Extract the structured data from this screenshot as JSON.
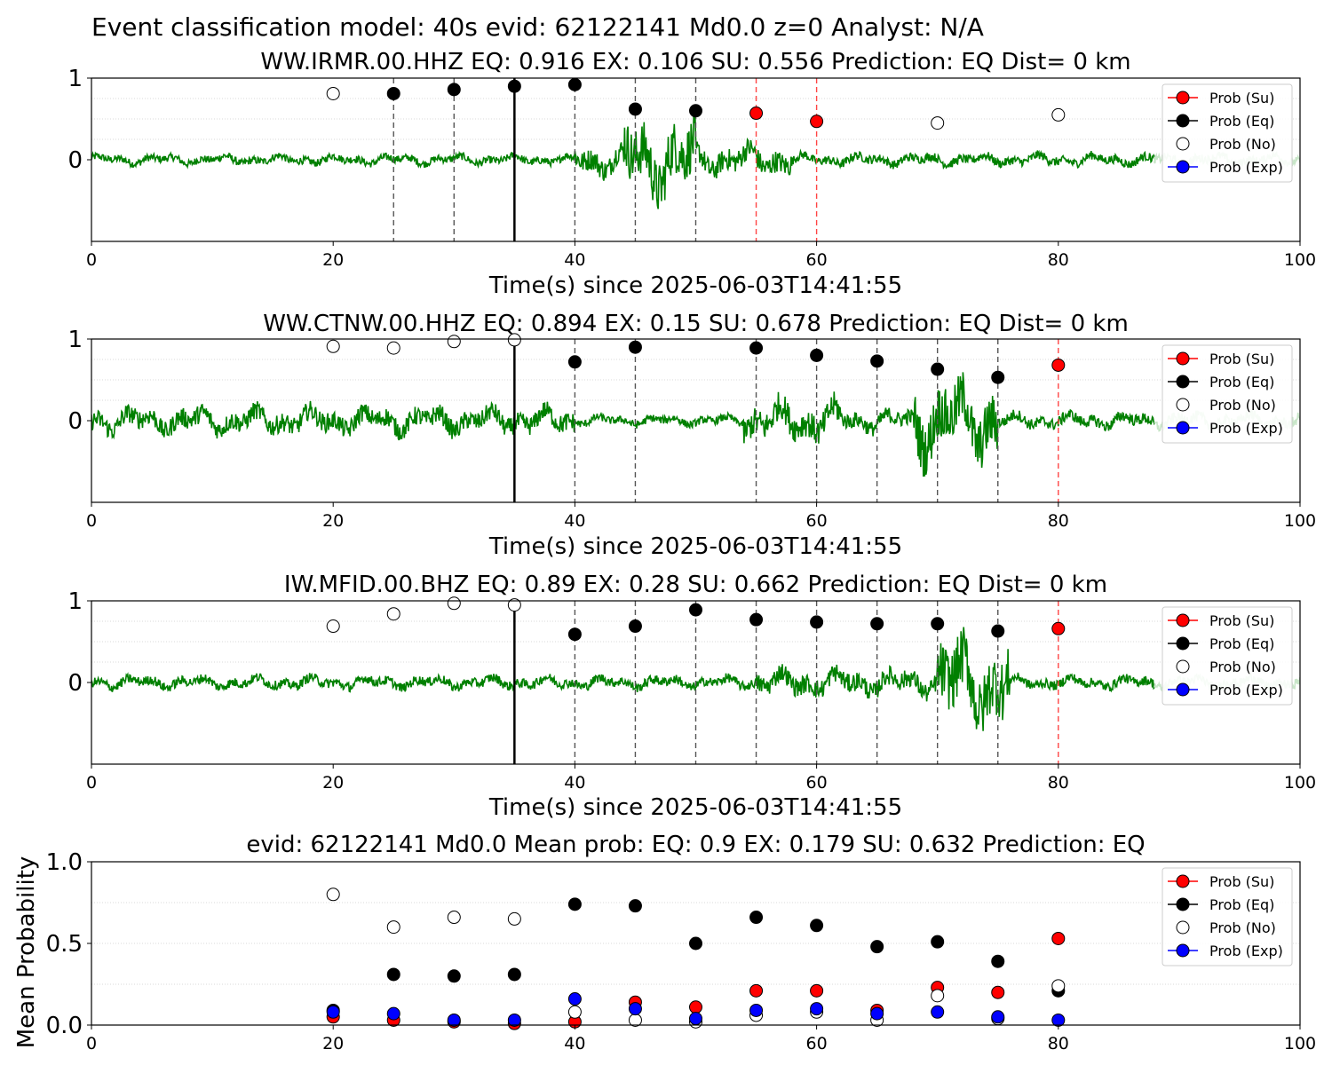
{
  "figure_title": "Event classification model: 40s evid: 62122141 Md0.0 z=0 Analyst: N/A",
  "legend_entries": [
    "Prob (Su)",
    "Prob (Eq)",
    "Prob (No)",
    "Prob (Exp)"
  ],
  "colors": {
    "su": "#ff0000",
    "eq": "#000000",
    "no": "#ffffff",
    "exp": "#0000ff",
    "waveform": "#008000",
    "waveform_faded": "#c8e6c8",
    "marker_line_gray": "#555555",
    "marker_line_red": "#ff4444"
  },
  "chart_data": [
    {
      "type": "line",
      "title": "WW.IRMR.00.HHZ   EQ: 0.916  EX: 0.106  SU: 0.556   Prediction: EQ    Dist= 0 km",
      "xlabel": "Time(s) since 2025-06-03T14:41:55",
      "ylabel": "",
      "xlim": [
        0,
        100
      ],
      "ylim": [
        -1,
        1
      ],
      "xticks": [
        0,
        20,
        40,
        60,
        80,
        100
      ],
      "yticks": [
        0,
        1
      ],
      "grid": "horizontal dotted",
      "legend_position": "top-right",
      "event_line_x": 35,
      "waveform_segments": [
        {
          "t": [
            0,
            40
          ],
          "amplitude": 0.12
        },
        {
          "t": [
            40,
            44
          ],
          "amplitude": 0.35
        },
        {
          "t": [
            44,
            50
          ],
          "amplitude": 0.85
        },
        {
          "t": [
            50,
            58
          ],
          "amplitude": 0.35
        },
        {
          "t": [
            58,
            100
          ],
          "amplitude": 0.14
        }
      ],
      "faded_from": 88,
      "series": [
        {
          "name": "Prob (Su)",
          "x": [
            55,
            60
          ],
          "values": [
            0.57,
            0.47
          ]
        },
        {
          "name": "Prob (Eq)",
          "x": [
            25,
            30,
            35,
            40,
            45,
            50
          ],
          "values": [
            0.81,
            0.86,
            0.9,
            0.92,
            0.62,
            0.6
          ]
        },
        {
          "name": "Prob (No)",
          "x": [
            20,
            70,
            80
          ],
          "values": [
            0.81,
            0.45,
            0.55
          ]
        },
        {
          "name": "Prob (Exp)",
          "x": [],
          "values": []
        }
      ],
      "vlines": [
        {
          "x": 25,
          "style": "gray"
        },
        {
          "x": 30,
          "style": "gray"
        },
        {
          "x": 40,
          "style": "gray"
        },
        {
          "x": 45,
          "style": "gray"
        },
        {
          "x": 50,
          "style": "gray"
        },
        {
          "x": 55,
          "style": "red"
        },
        {
          "x": 60,
          "style": "red"
        }
      ]
    },
    {
      "type": "line",
      "title": "WW.CTNW.00.HHZ   EQ: 0.894  EX: 0.15  SU: 0.678   Prediction: EQ    Dist= 0 km",
      "xlabel": "Time(s) since 2025-06-03T14:41:55",
      "ylabel": "",
      "xlim": [
        0,
        100
      ],
      "ylim": [
        -1,
        1
      ],
      "xticks": [
        0,
        20,
        40,
        60,
        80,
        100
      ],
      "yticks": [
        0,
        1
      ],
      "grid": "horizontal dotted",
      "legend_position": "top-right",
      "event_line_x": 35,
      "waveform_segments": [
        {
          "t": [
            0,
            40
          ],
          "amplitude": 0.3
        },
        {
          "t": [
            40,
            54
          ],
          "amplitude": 0.12
        },
        {
          "t": [
            54,
            62
          ],
          "amplitude": 0.45
        },
        {
          "t": [
            62,
            68
          ],
          "amplitude": 0.25
        },
        {
          "t": [
            68,
            75
          ],
          "amplitude": 0.85
        },
        {
          "t": [
            75,
            100
          ],
          "amplitude": 0.18
        }
      ],
      "faded_from": 88,
      "series": [
        {
          "name": "Prob (Su)",
          "x": [
            80
          ],
          "values": [
            0.68
          ]
        },
        {
          "name": "Prob (Eq)",
          "x": [
            40,
            45,
            55,
            60,
            65,
            70,
            75
          ],
          "values": [
            0.72,
            0.9,
            0.89,
            0.8,
            0.73,
            0.63,
            0.53
          ]
        },
        {
          "name": "Prob (No)",
          "x": [
            20,
            25,
            30,
            35
          ],
          "values": [
            0.91,
            0.89,
            0.97,
            0.99
          ]
        },
        {
          "name": "Prob (Exp)",
          "x": [],
          "values": []
        }
      ],
      "vlines": [
        {
          "x": 40,
          "style": "gray"
        },
        {
          "x": 45,
          "style": "gray"
        },
        {
          "x": 55,
          "style": "gray"
        },
        {
          "x": 60,
          "style": "gray"
        },
        {
          "x": 65,
          "style": "gray"
        },
        {
          "x": 70,
          "style": "gray"
        },
        {
          "x": 75,
          "style": "gray"
        },
        {
          "x": 80,
          "style": "red"
        }
      ]
    },
    {
      "type": "line",
      "title": "IW.MFID.00.BHZ   EQ: 0.89  EX: 0.28  SU: 0.662   Prediction: EQ    Dist= 0 km",
      "xlabel": "Time(s) since 2025-06-03T14:41:55",
      "ylabel": "",
      "xlim": [
        0,
        100
      ],
      "ylim": [
        -1,
        1
      ],
      "xticks": [
        0,
        20,
        40,
        60,
        80,
        100
      ],
      "yticks": [
        0,
        1
      ],
      "grid": "horizontal dotted",
      "legend_position": "top-right",
      "event_line_x": 35,
      "waveform_segments": [
        {
          "t": [
            0,
            55
          ],
          "amplitude": 0.15
        },
        {
          "t": [
            55,
            70
          ],
          "amplitude": 0.3
        },
        {
          "t": [
            70,
            76
          ],
          "amplitude": 0.95
        },
        {
          "t": [
            76,
            100
          ],
          "amplitude": 0.15
        }
      ],
      "faded_from": 88,
      "series": [
        {
          "name": "Prob (Su)",
          "x": [
            80
          ],
          "values": [
            0.66
          ]
        },
        {
          "name": "Prob (Eq)",
          "x": [
            40,
            45,
            50,
            55,
            60,
            65,
            70,
            75
          ],
          "values": [
            0.59,
            0.69,
            0.89,
            0.77,
            0.74,
            0.72,
            0.72,
            0.63
          ]
        },
        {
          "name": "Prob (No)",
          "x": [
            20,
            25,
            30,
            35
          ],
          "values": [
            0.69,
            0.84,
            0.97,
            0.95
          ]
        },
        {
          "name": "Prob (Exp)",
          "x": [],
          "values": []
        }
      ],
      "vlines": [
        {
          "x": 40,
          "style": "gray"
        },
        {
          "x": 45,
          "style": "gray"
        },
        {
          "x": 50,
          "style": "gray"
        },
        {
          "x": 55,
          "style": "gray"
        },
        {
          "x": 60,
          "style": "gray"
        },
        {
          "x": 65,
          "style": "gray"
        },
        {
          "x": 70,
          "style": "gray"
        },
        {
          "x": 75,
          "style": "gray"
        },
        {
          "x": 80,
          "style": "red"
        }
      ]
    },
    {
      "type": "scatter",
      "title": "evid: 62122141  Md0.0   Mean prob:   EQ: 0.9  EX: 0.179  SU: 0.632   Prediction: EQ",
      "xlabel": "",
      "ylabel": "Mean Probability",
      "xlim": [
        0,
        100
      ],
      "ylim": [
        0,
        1
      ],
      "xticks": [
        0,
        20,
        40,
        60,
        80,
        100
      ],
      "yticks": [
        0.0,
        0.5,
        1.0
      ],
      "ytick_labels": [
        "0.0",
        "0.5",
        "1.0"
      ],
      "grid": "horizontal dotted",
      "legend_position": "top-right",
      "series": [
        {
          "name": "Prob (Su)",
          "x": [
            20,
            25,
            30,
            35,
            40,
            45,
            50,
            55,
            60,
            65,
            70,
            75,
            80
          ],
          "values": [
            0.05,
            0.03,
            0.02,
            0.01,
            0.02,
            0.14,
            0.11,
            0.21,
            0.21,
            0.09,
            0.23,
            0.2,
            0.53
          ]
        },
        {
          "name": "Prob (Eq)",
          "x": [
            20,
            25,
            30,
            35,
            40,
            45,
            50,
            55,
            60,
            65,
            70,
            75,
            80
          ],
          "values": [
            0.09,
            0.31,
            0.3,
            0.31,
            0.74,
            0.73,
            0.5,
            0.66,
            0.61,
            0.48,
            0.51,
            0.39,
            0.21
          ]
        },
        {
          "name": "Prob (No)",
          "x": [
            20,
            25,
            30,
            35,
            40,
            45,
            50,
            55,
            60,
            65,
            70,
            75,
            80
          ],
          "values": [
            0.8,
            0.6,
            0.66,
            0.65,
            0.08,
            0.03,
            0.02,
            0.06,
            0.08,
            0.03,
            0.18,
            0.04,
            0.24
          ]
        },
        {
          "name": "Prob (Exp)",
          "x": [
            20,
            25,
            30,
            35,
            40,
            45,
            50,
            55,
            60,
            65,
            70,
            75,
            80
          ],
          "values": [
            0.08,
            0.07,
            0.03,
            0.03,
            0.16,
            0.1,
            0.04,
            0.09,
            0.1,
            0.07,
            0.08,
            0.05,
            0.03
          ]
        }
      ]
    }
  ]
}
